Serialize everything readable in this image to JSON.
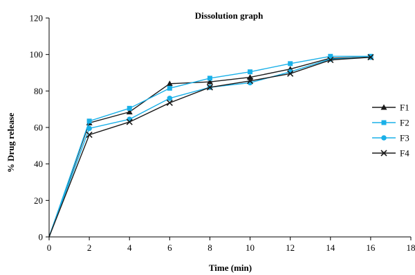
{
  "chart_data": {
    "type": "line",
    "title": "Dissolution graph",
    "xlabel": "Time (min)",
    "ylabel": "% Drug release",
    "xlim": [
      0,
      18
    ],
    "ylim": [
      0,
      120
    ],
    "xticks": [
      0,
      2,
      4,
      6,
      8,
      10,
      12,
      14,
      16,
      18
    ],
    "yticks": [
      0,
      20,
      40,
      60,
      80,
      100,
      120
    ],
    "grid": false,
    "legend": "right",
    "x": [
      0,
      2,
      4,
      6,
      8,
      10,
      12,
      14,
      16
    ],
    "series": [
      {
        "name": "F1",
        "marker": "triangle",
        "color": "#1a1a1a",
        "values": [
          0,
          62.5,
          68.5,
          84,
          85,
          87.5,
          92,
          98,
          98.5
        ]
      },
      {
        "name": "F2",
        "marker": "square",
        "color": "#1ab0e8",
        "values": [
          0,
          63.5,
          70.5,
          81.5,
          87,
          90.5,
          95,
          99,
          99
        ]
      },
      {
        "name": "F3",
        "marker": "circle",
        "color": "#1ab0e8",
        "values": [
          0,
          59.5,
          64.5,
          76,
          82,
          84.5,
          90.5,
          97.5,
          98.5
        ]
      },
      {
        "name": "F4",
        "marker": "x",
        "color": "#1a1a1a",
        "values": [
          0,
          56,
          63,
          73.5,
          82,
          85.5,
          89.5,
          97,
          98.5
        ]
      }
    ]
  }
}
